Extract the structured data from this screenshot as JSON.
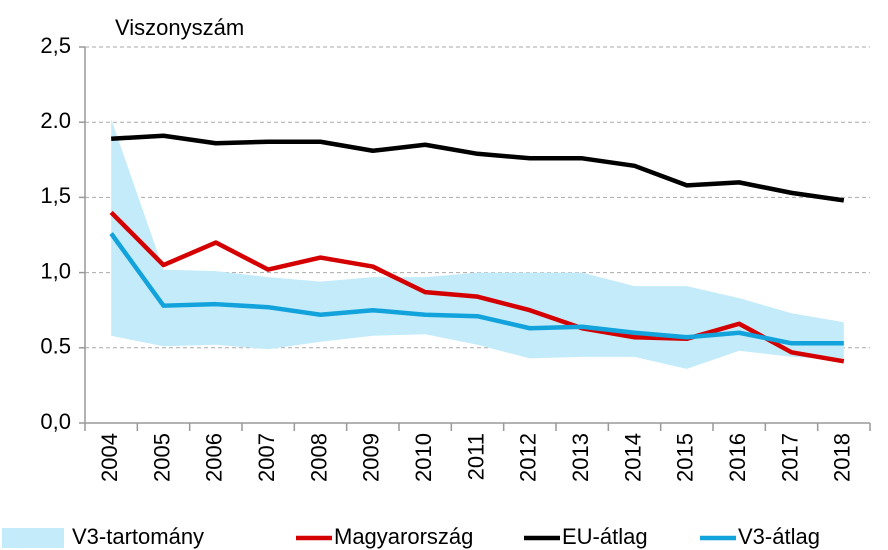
{
  "chart_data": {
    "type": "line",
    "y_label": "Viszonyszám",
    "categories": [
      "2004",
      "2005",
      "2006",
      "2007",
      "2008",
      "2009",
      "2010",
      "2011",
      "2012",
      "2013",
      "2014",
      "2015",
      "2016",
      "2017",
      "2018"
    ],
    "ylim": [
      0,
      2.5
    ],
    "yticks": [
      {
        "value": 0,
        "label": "0,0"
      },
      {
        "value": 0.5,
        "label": "0.5"
      },
      {
        "value": 1,
        "label": "1,0"
      },
      {
        "value": 1.5,
        "label": "1,5"
      },
      {
        "value": 2,
        "label": "2.0"
      },
      {
        "value": 2.5,
        "label": "2,5"
      }
    ],
    "grid": true,
    "legend": "bottom",
    "range": {
      "name": "V3-tartomány",
      "color": "#c3ebfa",
      "upper": [
        2.02,
        1.02,
        1.01,
        0.97,
        0.94,
        0.97,
        0.97,
        1.0,
        1.0,
        1.0,
        0.91,
        0.91,
        0.83,
        0.73,
        0.67
      ],
      "lower": [
        0.58,
        0.51,
        0.52,
        0.49,
        0.54,
        0.58,
        0.59,
        0.52,
        0.43,
        0.44,
        0.44,
        0.36,
        0.48,
        0.44,
        0.42
      ]
    },
    "series": [
      {
        "name": "Magyarország",
        "color": "#d40000",
        "values": [
          1.4,
          1.05,
          1.2,
          1.02,
          1.1,
          1.04,
          0.87,
          0.84,
          0.75,
          0.63,
          0.57,
          0.56,
          0.66,
          0.47,
          0.41
        ]
      },
      {
        "name": "EU-átlag",
        "color": "#000000",
        "values": [
          1.89,
          1.91,
          1.86,
          1.87,
          1.87,
          1.81,
          1.85,
          1.79,
          1.76,
          1.76,
          1.71,
          1.58,
          1.6,
          1.53,
          1.48
        ]
      },
      {
        "name": "V3-átlag",
        "color": "#12a2dc",
        "values": [
          1.26,
          0.78,
          0.79,
          0.77,
          0.72,
          0.75,
          0.72,
          0.71,
          0.63,
          0.64,
          0.6,
          0.57,
          0.6,
          0.53,
          0.53
        ]
      }
    ]
  }
}
